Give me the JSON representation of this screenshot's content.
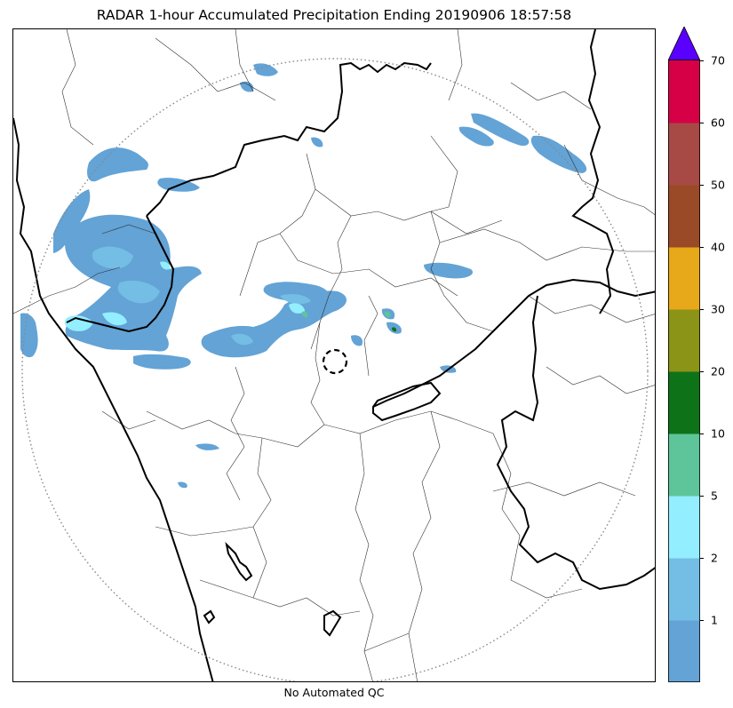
{
  "title": "RADAR 1-hour Accumulated Precipitation Ending 20190906 18:57:58",
  "footer": "No Automated QC",
  "colorbar": {
    "extend": "max",
    "extend_color": "#5a00ff",
    "bins": [
      {
        "from": "0",
        "to": "1",
        "color": "#63a3d6"
      },
      {
        "from": "1",
        "to": "2",
        "color": "#74bde4"
      },
      {
        "from": "2",
        "to": "5",
        "color": "#93eeff"
      },
      {
        "from": "5",
        "to": "10",
        "color": "#5ec499"
      },
      {
        "from": "10",
        "to": "20",
        "color": "#0e7219"
      },
      {
        "from": "20",
        "to": "30",
        "color": "#8b9416"
      },
      {
        "from": "30",
        "to": "40",
        "color": "#e7a81a"
      },
      {
        "from": "40",
        "to": "50",
        "color": "#9a4a26"
      },
      {
        "from": "50",
        "to": "60",
        "color": "#a74a45"
      },
      {
        "from": "60",
        "to": "70",
        "color": "#d50045"
      }
    ],
    "tick_labels": [
      "1",
      "2",
      "5",
      "10",
      "20",
      "30",
      "40",
      "50",
      "60",
      "70"
    ]
  },
  "map": {
    "range_ring_style": "dotted",
    "radar_site_marker": "dashed circle"
  }
}
